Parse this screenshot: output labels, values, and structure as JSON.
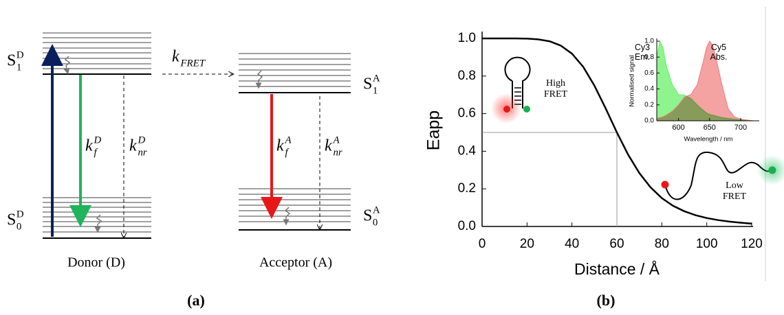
{
  "diagram": {
    "states": [
      {
        "base": "S",
        "sup": "D",
        "sub": "1"
      },
      {
        "base": "S",
        "sup": "D",
        "sub": "0"
      },
      {
        "base": "S",
        "sup": "A",
        "sub": "1"
      },
      {
        "base": "S",
        "sup": "A",
        "sub": "0"
      }
    ],
    "rates": [
      {
        "base": "k",
        "sub": "FRET"
      },
      {
        "base": "k",
        "sup": "D",
        "sub": "f"
      },
      {
        "base": "k",
        "sup": "D",
        "sub": "nr"
      },
      {
        "base": "k",
        "sup": "A",
        "sub": "f"
      },
      {
        "base": "k",
        "sup": "A",
        "sub": "nr"
      }
    ],
    "donor_label": "Donor (D)",
    "acceptor_label": "Acceptor (A)",
    "panel_label": "(a)"
  },
  "panel_b": {
    "panel_label": "(b)"
  },
  "chart_data": [
    {
      "type": "line",
      "xlabel": "Distance / Å",
      "ylabel": "Eapp",
      "x": [
        0,
        5,
        10,
        15,
        20,
        25,
        30,
        35,
        40,
        45,
        50,
        55,
        60,
        65,
        70,
        75,
        80,
        85,
        90,
        95,
        100,
        105,
        110,
        115,
        120
      ],
      "values": [
        1.0,
        1.0,
        1.0,
        1.0,
        0.999,
        0.995,
        0.985,
        0.962,
        0.919,
        0.849,
        0.749,
        0.628,
        0.5,
        0.382,
        0.284,
        0.208,
        0.151,
        0.11,
        0.081,
        0.06,
        0.045,
        0.034,
        0.026,
        0.02,
        0.015
      ],
      "color": "#000000",
      "xlim": [
        0,
        120
      ],
      "xticks": [
        0,
        20,
        40,
        60,
        80,
        100,
        120
      ],
      "ylim": [
        0,
        1
      ],
      "yticks": [
        {
          "value": 0,
          "label": "0.0"
        },
        0.2,
        0.4,
        0.6,
        0.8,
        {
          "value": 1,
          "label": "1.0"
        }
      ],
      "reference": {
        "x": 60,
        "y": 0.5
      },
      "annotations": [
        "High FRET",
        "Low FRET"
      ]
    },
    {
      "type": "area",
      "xlabel": "Wavelength / nm",
      "ylabel": "Normalised signal",
      "x": [
        565,
        570,
        575,
        580,
        590,
        600,
        610,
        620,
        630,
        640,
        645,
        650,
        655,
        660,
        670,
        680,
        690,
        700,
        710,
        720,
        730
      ],
      "series": [
        {
          "name": "Cy3 Em.",
          "color": "#5ef05e",
          "values": [
            0.8,
            1.0,
            0.92,
            0.7,
            0.45,
            0.33,
            0.32,
            0.28,
            0.2,
            0.13,
            0.1,
            0.08,
            0.07,
            0.06,
            0.04,
            0.03,
            0.02,
            0.01,
            0.01,
            0,
            0
          ]
        },
        {
          "name": "Cy5 Abs.",
          "color": "#f07a7a",
          "values": [
            0.03,
            0.04,
            0.05,
            0.07,
            0.12,
            0.2,
            0.3,
            0.33,
            0.45,
            0.75,
            0.92,
            1.0,
            0.95,
            0.8,
            0.45,
            0.15,
            0.05,
            0.02,
            0.01,
            0,
            0
          ]
        }
      ],
      "xlim": [
        565,
        730
      ],
      "xticks": [
        600,
        650,
        700
      ],
      "ylim": [
        0,
        1
      ],
      "yticks": [
        {
          "value": 0,
          "label": "0.0"
        },
        0.2,
        0.4,
        0.6,
        0.8,
        {
          "value": 1,
          "label": "1.0"
        }
      ]
    }
  ]
}
